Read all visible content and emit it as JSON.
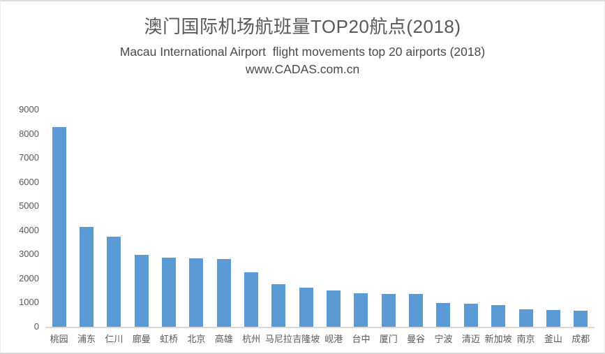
{
  "chart_data": {
    "type": "bar",
    "title": "澳门国际机场航班量TOP20航点(2018)",
    "subtitle": "Macau International Airport  flight movements top 20 airports (2018)",
    "watermark": "www.CADAS.com.cn",
    "categories": [
      "桃园",
      "浦东",
      "仁川",
      "廊曼",
      "虹桥",
      "北京",
      "高雄",
      "杭州",
      "马尼拉",
      "吉隆坡",
      "岘港",
      "台中",
      "厦门",
      "曼谷",
      "宁波",
      "清迈",
      "新加坡",
      "南京",
      "釜山",
      "成都"
    ],
    "values": [
      8280,
      4150,
      3740,
      2970,
      2860,
      2830,
      2800,
      2250,
      1770,
      1620,
      1510,
      1380,
      1360,
      1360,
      990,
      960,
      910,
      710,
      700,
      680
    ],
    "xlabel": "",
    "ylabel": "",
    "ylim": [
      0,
      9000
    ],
    "yticks": [
      0,
      1000,
      2000,
      3000,
      4000,
      5000,
      6000,
      7000,
      8000,
      9000
    ],
    "grid": false,
    "legend": false,
    "bar_color": "#5b9bd5",
    "axis_text_color": "#595959",
    "axis_line_color": "#d9d9d9",
    "title_color": "#595959"
  }
}
